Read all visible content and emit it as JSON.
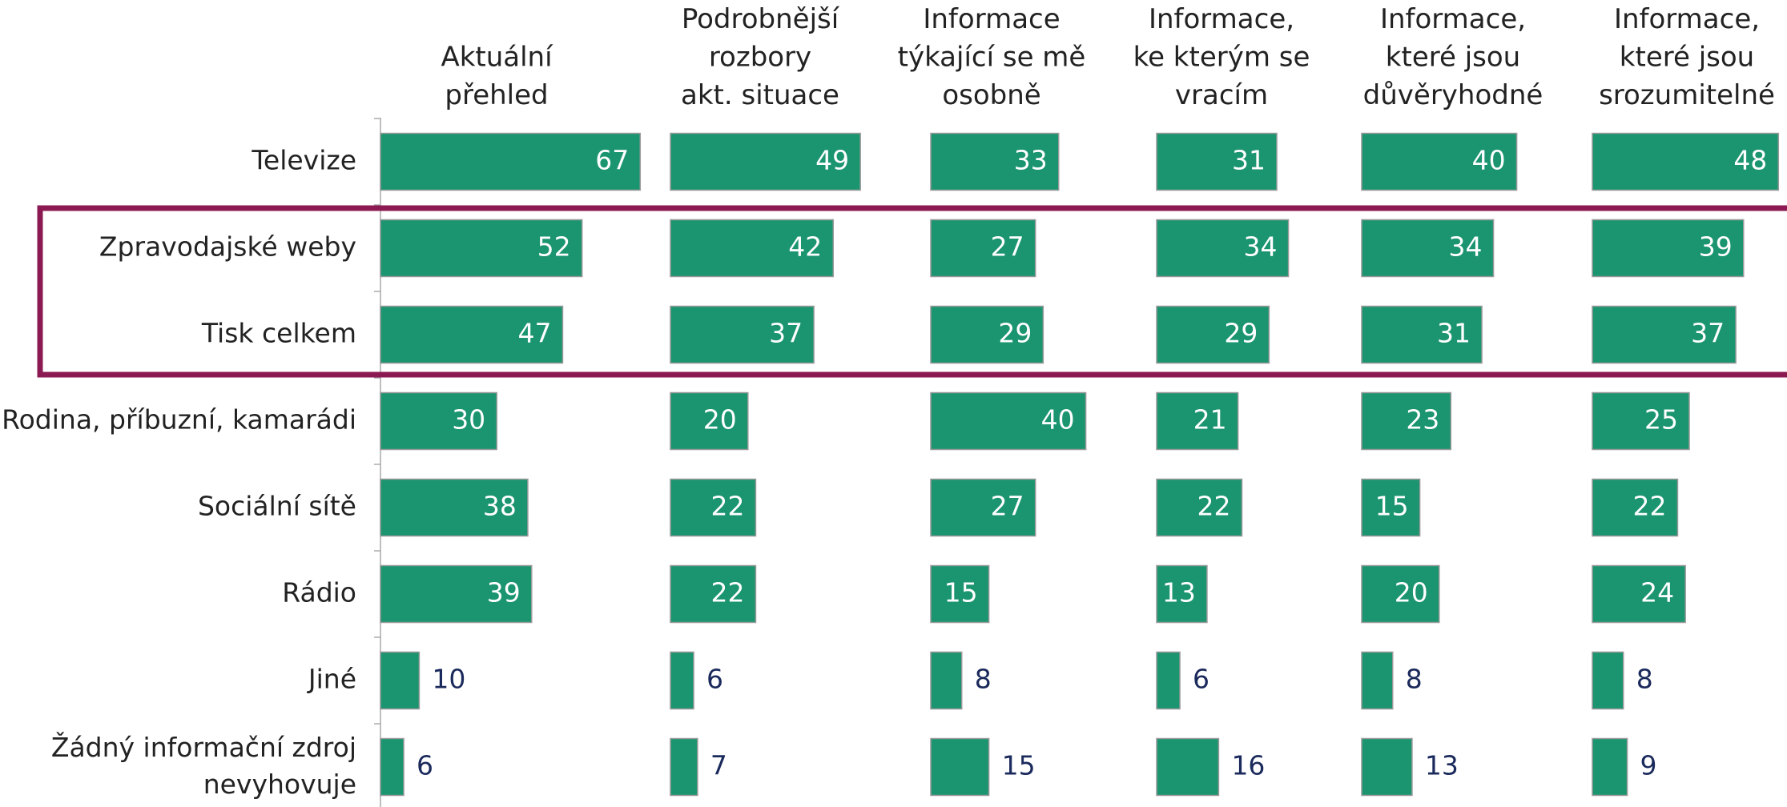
{
  "chart_data": {
    "type": "bar",
    "orientation": "horizontal",
    "categories": [
      "Televize",
      "Zpravodajské weby",
      "Tisk celkem",
      "Rodina, příbuzní, kamarádi",
      "Sociální sítě",
      "Rádio",
      "Jiné",
      "Žádný informační zdroj\nnevyhovuje"
    ],
    "color": "#1b9470",
    "label_position": [
      "inside",
      "inside",
      "inside",
      "inside",
      "inside",
      "inside",
      "outside",
      "outside"
    ],
    "highlight": {
      "rows": [
        1,
        2
      ],
      "color": "#8b1a52"
    },
    "series": [
      {
        "name": "Aktuální\npřehled",
        "values": [
          67,
          52,
          47,
          30,
          38,
          39,
          10,
          6
        ]
      },
      {
        "name": "Podrobnější\nrozbory\nakt. situace",
        "values": [
          49,
          42,
          37,
          20,
          22,
          22,
          6,
          7
        ]
      },
      {
        "name": "Informace\ntýkající se mě\nosobně",
        "values": [
          33,
          27,
          29,
          40,
          27,
          15,
          8,
          15
        ]
      },
      {
        "name": "Informace,\nke kterým se\nvracím",
        "values": [
          31,
          34,
          29,
          21,
          22,
          13,
          6,
          16
        ]
      },
      {
        "name": "Informace,\nkteré jsou\ndůvěryhodné",
        "values": [
          40,
          34,
          31,
          23,
          15,
          20,
          8,
          13
        ]
      },
      {
        "name": "Informace,\nkteré jsou\nsrozumitelné",
        "values": [
          48,
          39,
          37,
          25,
          22,
          24,
          8,
          9
        ]
      }
    ]
  }
}
